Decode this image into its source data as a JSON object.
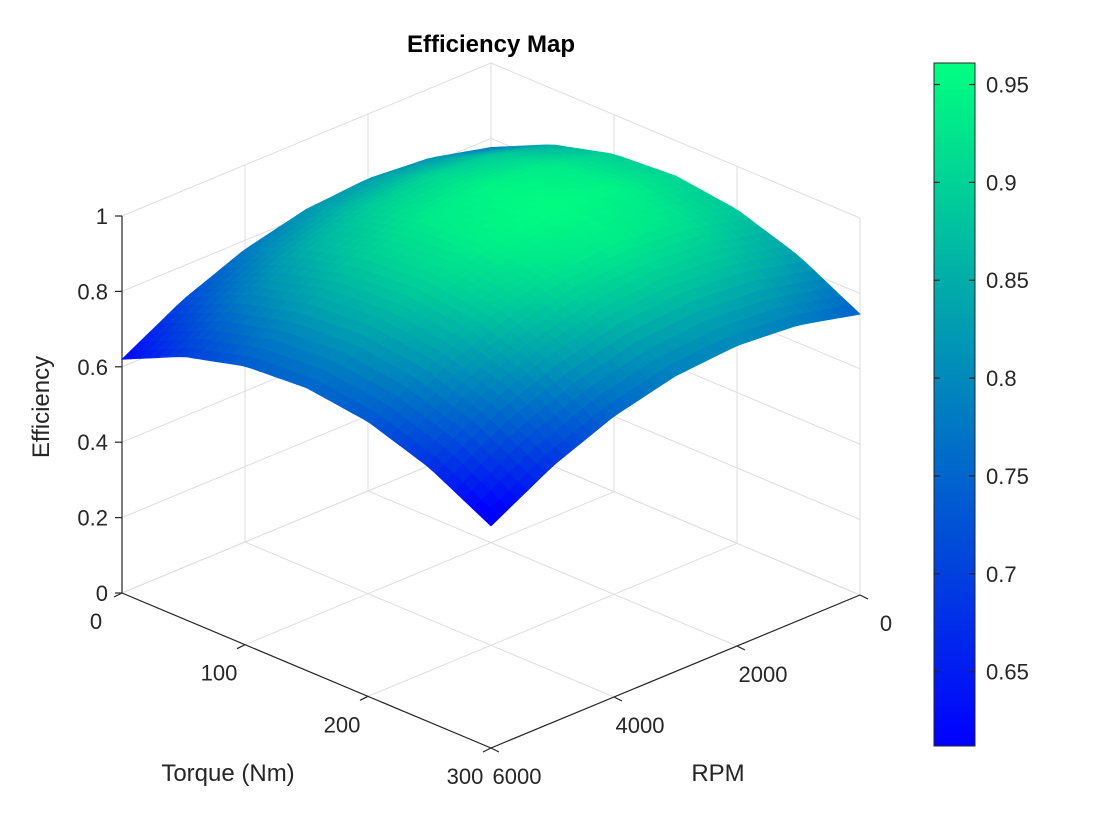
{
  "chart_data": {
    "type": "surface",
    "title": "Efficiency Map",
    "xlabel": "Torque (Nm)",
    "ylabel": "RPM",
    "zlabel": "Efficiency",
    "xlim": [
      0,
      300
    ],
    "ylim": [
      0,
      6000
    ],
    "zlim": [
      0,
      1
    ],
    "x_ticks": [
      "0",
      "100",
      "200",
      "300"
    ],
    "y_ticks": [
      "0",
      "2000",
      "4000",
      "6000"
    ],
    "z_ticks": [
      "0",
      "0.2",
      "0.4",
      "0.6",
      "0.8",
      "1"
    ],
    "grid": true,
    "colormap": "winter",
    "colormap_colors": [
      "#0000ff",
      "#00ff80"
    ],
    "colorbar": {
      "location": "right",
      "range": [
        0.612,
        0.961
      ],
      "ticks": [
        "0.65",
        "0.7",
        "0.75",
        "0.8",
        "0.85",
        "0.9",
        "0.95"
      ]
    },
    "surface": {
      "torque": [
        0,
        50,
        100,
        150,
        200,
        250,
        300
      ],
      "rpm": [
        0,
        1000,
        2000,
        3000,
        4000,
        5000,
        6000
      ],
      "efficiency": [
        [
          0.776,
          0.852,
          0.895,
          0.906,
          0.885,
          0.831,
          0.745
        ],
        [
          0.815,
          0.891,
          0.934,
          0.945,
          0.924,
          0.87,
          0.784
        ],
        [
          0.828,
          0.904,
          0.947,
          0.958,
          0.937,
          0.883,
          0.797
        ],
        [
          0.815,
          0.891,
          0.934,
          0.945,
          0.924,
          0.87,
          0.784
        ],
        [
          0.776,
          0.852,
          0.895,
          0.906,
          0.885,
          0.831,
          0.745
        ],
        [
          0.711,
          0.787,
          0.83,
          0.841,
          0.82,
          0.766,
          0.68
        ],
        [
          0.62,
          0.696,
          0.739,
          0.75,
          0.729,
          0.675,
          0.589
        ]
      ]
    }
  }
}
